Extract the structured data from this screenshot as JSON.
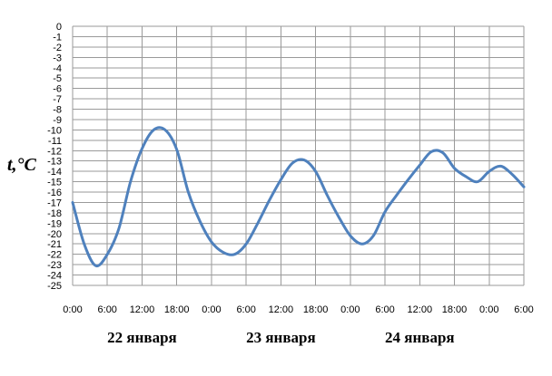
{
  "chart_data": {
    "type": "line",
    "ylabel": "t,°C",
    "ylim": [
      -25,
      0
    ],
    "ytick_labels": [
      "0",
      "-1",
      "-2",
      "-3",
      "-4",
      "-5",
      "-6",
      "-7",
      "-8",
      "-9",
      "-10",
      "-11",
      "-12",
      "-13",
      "-14",
      "-15",
      "-16",
      "-17",
      "-18",
      "-19",
      "-20",
      "-21",
      "-22",
      "-23",
      "-24",
      "-25"
    ],
    "xtick_labels": [
      "0:00",
      "6:00",
      "12:00",
      "18:00",
      "0:00",
      "6:00",
      "12:00",
      "18:00",
      "0:00",
      "6:00",
      "12:00",
      "18:00",
      "0:00",
      "6:00"
    ],
    "day_labels": [
      "22 января",
      "23 января",
      "24 января"
    ],
    "grid": true,
    "color": "#4f81bd",
    "series": [
      {
        "x_hours": [
          0,
          2,
          4,
          6,
          8,
          10,
          12,
          14,
          16,
          18,
          20,
          22,
          24,
          26,
          28,
          30,
          32,
          34,
          36,
          38,
          40,
          42,
          44,
          46,
          48,
          50,
          52,
          54,
          56,
          58,
          60,
          62,
          64,
          66,
          68,
          70,
          72,
          74,
          76,
          78
        ],
        "values": [
          -17,
          -21,
          -23.1,
          -22,
          -19.5,
          -15,
          -11.8,
          -10,
          -10,
          -11.9,
          -16,
          -18.8,
          -20.8,
          -21.8,
          -22,
          -21,
          -19,
          -16.8,
          -14.8,
          -13.2,
          -12.9,
          -14,
          -16.3,
          -18.4,
          -20.2,
          -21,
          -20.2,
          -17.9,
          -16.3,
          -14.8,
          -13.4,
          -12.1,
          -12.2,
          -13.7,
          -14.5,
          -15,
          -14,
          -13.5,
          -14.3,
          -15.5
        ]
      }
    ]
  }
}
